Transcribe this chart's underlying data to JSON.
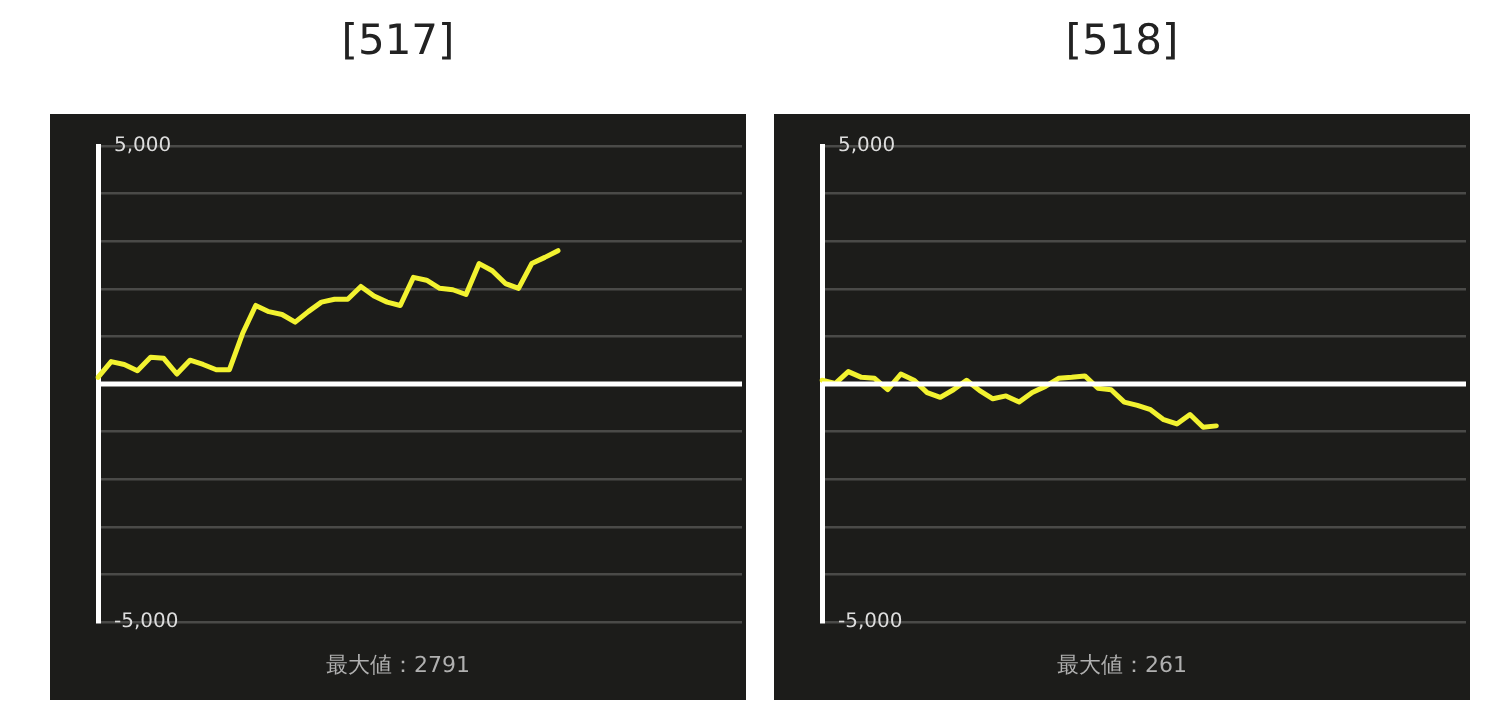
{
  "chart_data": [
    {
      "type": "line",
      "title": "[517]",
      "categories": [
        null,
        null,
        null,
        null,
        null,
        null,
        null,
        null,
        null,
        null,
        null,
        null,
        null,
        null,
        null,
        null,
        null,
        null,
        null,
        null,
        null,
        null,
        null,
        null,
        null,
        null,
        null,
        null,
        null,
        null,
        null,
        null,
        null,
        null,
        null,
        null,
        null,
        null,
        null,
        null,
        null,
        null,
        null,
        null,
        null,
        null,
        null,
        null,
        null,
        null
      ],
      "series": [
        {
          "color": "#f2f230",
          "values": [
            140,
            470,
            410,
            280,
            560,
            540,
            210,
            500,
            410,
            300,
            300,
            1060,
            1650,
            1520,
            1460,
            1300,
            1520,
            1720,
            1780,
            1780,
            2050,
            1850,
            1720,
            1650,
            2240,
            2180,
            2010,
            1980,
            1880,
            2530,
            2380,
            2110,
            2010,
            2530,
            2660,
            2800,
            null,
            null,
            null,
            null,
            null,
            null,
            null,
            null,
            null,
            null,
            null,
            null,
            null,
            null
          ]
        }
      ],
      "ylim": [
        -5000,
        5000
      ],
      "yticks": [
        {
          "value": -5000,
          "label": "-5,000"
        },
        {
          "value": -4000,
          "label": null
        },
        {
          "value": -3000,
          "label": null
        },
        {
          "value": -2000,
          "label": null
        },
        {
          "value": -1000,
          "label": null
        },
        {
          "value": 0,
          "label": null
        },
        {
          "value": 1000,
          "label": null
        },
        {
          "value": 2000,
          "label": null
        },
        {
          "value": 3000,
          "label": null
        },
        {
          "value": 4000,
          "label": null
        },
        {
          "value": 5000,
          "label": "5,000"
        }
      ],
      "grid": "y",
      "tick_labels": "y",
      "ref_lines": [
        {
          "axis": "y",
          "value": 0,
          "color": "#ffffff"
        }
      ],
      "annotations": [
        "最大値：2791"
      ]
    },
    {
      "type": "line",
      "title": "[518]",
      "categories": [
        null,
        null,
        null,
        null,
        null,
        null,
        null,
        null,
        null,
        null,
        null,
        null,
        null,
        null,
        null,
        null,
        null,
        null,
        null,
        null,
        null,
        null,
        null,
        null,
        null,
        null,
        null,
        null,
        null,
        null,
        null,
        null,
        null,
        null,
        null,
        null,
        null,
        null,
        null,
        null,
        null,
        null,
        null,
        null,
        null,
        null,
        null,
        null,
        null,
        null
      ],
      "series": [
        {
          "color": "#f2f230",
          "values": [
            80,
            10,
            260,
            140,
            120,
            -120,
            210,
            80,
            -180,
            -280,
            -120,
            80,
            -140,
            -310,
            -250,
            -380,
            -180,
            -50,
            120,
            140,
            170,
            -90,
            -120,
            -380,
            -450,
            -540,
            -750,
            -840,
            -640,
            -910,
            -880,
            null,
            null,
            null,
            null,
            null,
            null,
            null,
            null,
            null,
            null,
            null,
            null,
            null,
            null,
            null,
            null,
            null,
            null,
            null
          ]
        }
      ],
      "ylim": [
        -5000,
        5000
      ],
      "yticks": [
        {
          "value": -5000,
          "label": "-5,000"
        },
        {
          "value": -4000,
          "label": null
        },
        {
          "value": -3000,
          "label": null
        },
        {
          "value": -2000,
          "label": null
        },
        {
          "value": -1000,
          "label": null
        },
        {
          "value": 0,
          "label": null
        },
        {
          "value": 1000,
          "label": null
        },
        {
          "value": 2000,
          "label": null
        },
        {
          "value": 3000,
          "label": null
        },
        {
          "value": 4000,
          "label": null
        },
        {
          "value": 5000,
          "label": "5,000"
        }
      ],
      "grid": "y",
      "tick_labels": "y",
      "ref_lines": [
        {
          "axis": "y",
          "value": 0,
          "color": "#ffffff"
        }
      ],
      "annotations": [
        "最大値：261"
      ]
    }
  ]
}
